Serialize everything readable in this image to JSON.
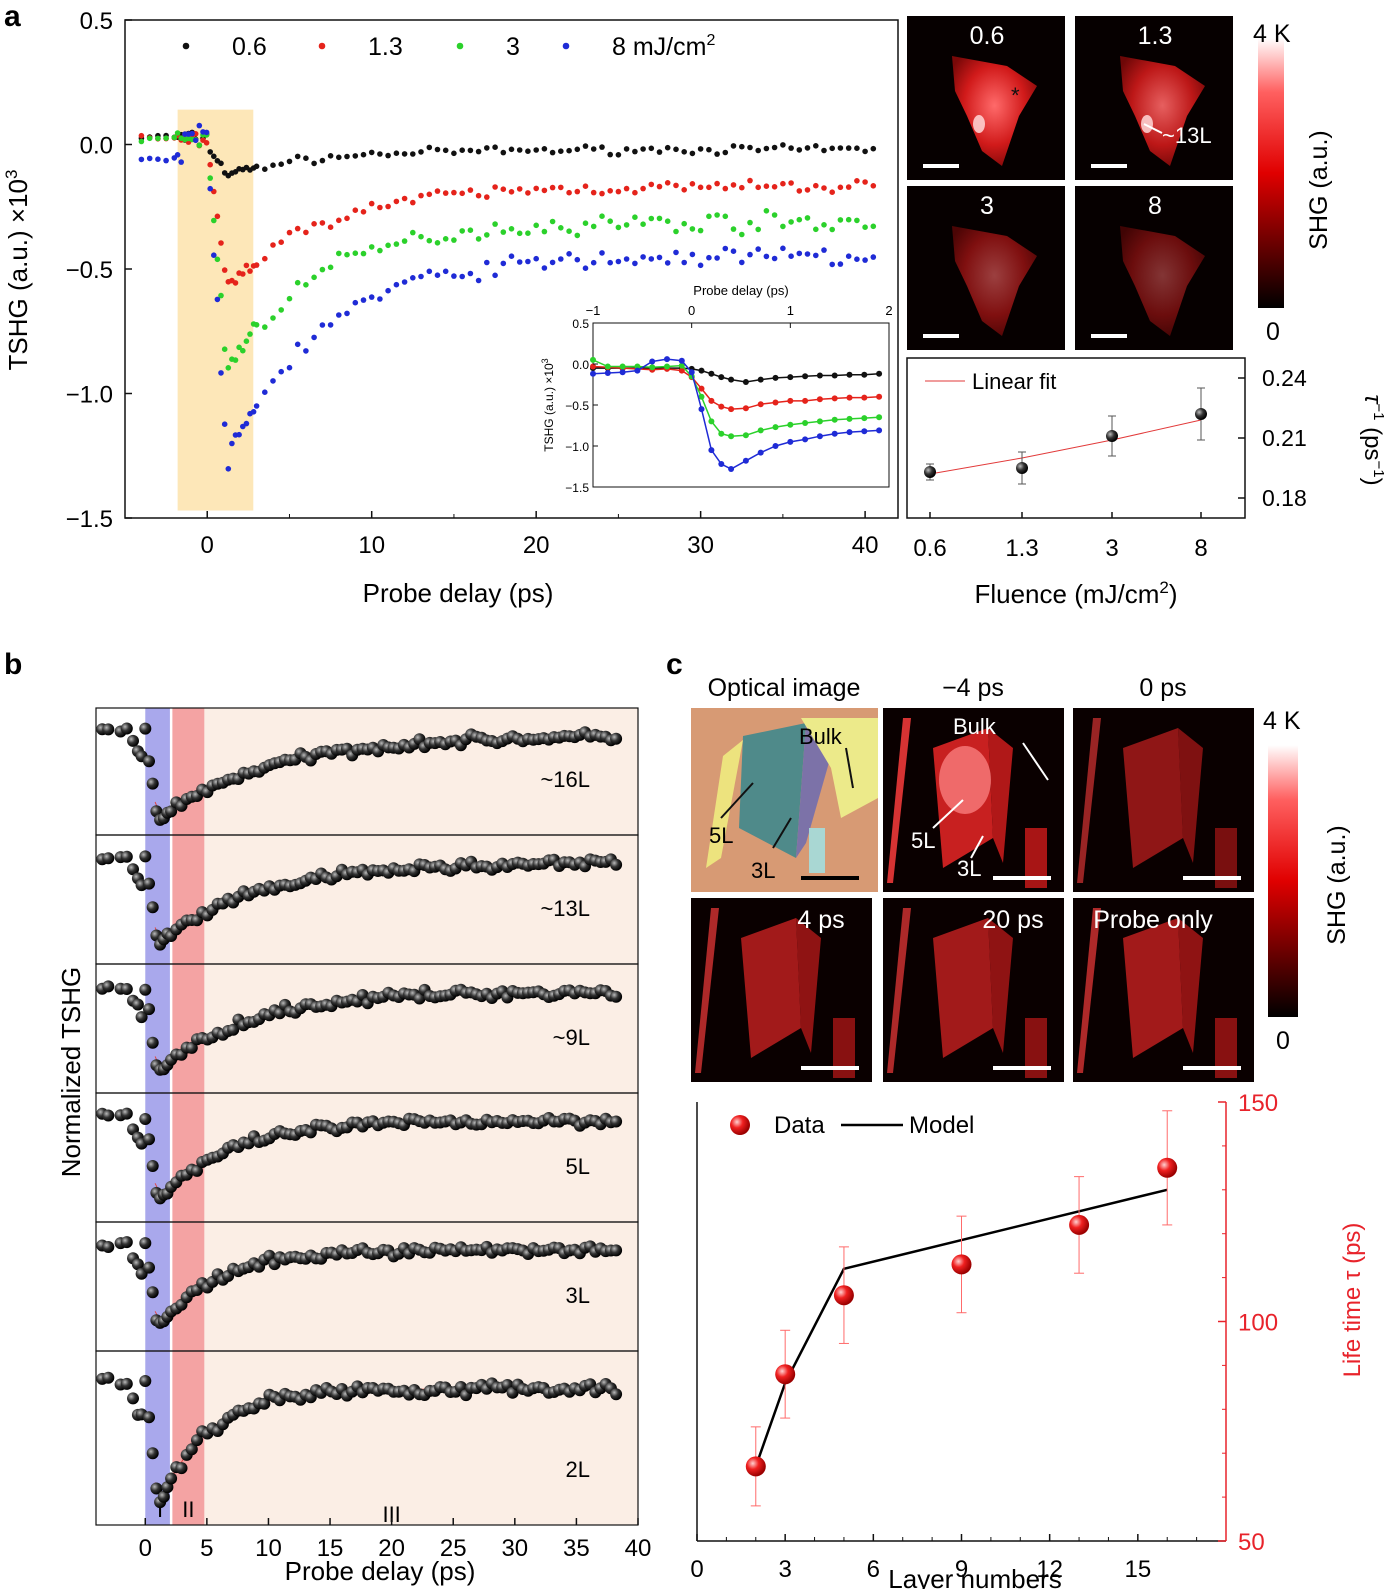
{
  "panel_labels": {
    "a": "a",
    "b": "b",
    "c": "c"
  },
  "colors": {
    "s06": "#111111",
    "s13": "#e5231b",
    "s3": "#2bd12b",
    "s8": "#1f2bd6",
    "highlight": "#fde7b8",
    "fit": "#e23a3a",
    "red": "#e8232b",
    "regionI": "#a9a8ec",
    "regionII": "#f4a3a3",
    "regionIII": "#fbeee5"
  },
  "chart_data": [
    {
      "id": "a-main",
      "type": "scatter",
      "xlabel": "Probe delay (ps)",
      "ylabel": "TSHG (a.u.) ×10",
      "ylabel_sup": "3",
      "xlim": [
        -5,
        42
      ],
      "ylim": [
        -1.5,
        0.5
      ],
      "xticks": [
        0,
        10,
        20,
        30,
        40
      ],
      "yticks": [
        0.5,
        0.0,
        -0.5,
        -1.0,
        -1.5
      ],
      "yticklabels": [
        "0.5",
        "0.0",
        "−0.5",
        "−1.0",
        "−1.5"
      ],
      "highlight_range": [
        -1.8,
        2.8
      ],
      "legend": [
        {
          "label": "0.6",
          "key": "s06"
        },
        {
          "label": "1.3",
          "key": "s13"
        },
        {
          "label": "3",
          "key": "s3"
        },
        {
          "label": "8 mJ/cm",
          "key": "s8",
          "sup": "2"
        }
      ],
      "series": [
        {
          "name": "0.6 mJ/cm2",
          "key": "s06",
          "dip": -0.12,
          "final": -0.02,
          "noise": 0.012
        },
        {
          "name": "1.3 mJ/cm2",
          "key": "s13",
          "dip": -0.58,
          "final": -0.17,
          "noise": 0.02
        },
        {
          "name": "3 mJ/cm2",
          "key": "s3",
          "dip": -0.9,
          "final": -0.31,
          "noise": 0.03
        },
        {
          "name": "8 mJ/cm2",
          "key": "s8",
          "dip": -1.28,
          "final": -0.45,
          "noise": 0.03
        }
      ]
    },
    {
      "id": "a-inset",
      "type": "line",
      "xlabel": "Probe delay (ps)",
      "ylabel": "TSHG (a.u.) ×10",
      "ylabel_sup": "3",
      "xlim": [
        -1,
        2
      ],
      "ylim": [
        -1.5,
        0.5
      ],
      "xticks": [
        -1,
        0,
        1,
        2
      ],
      "xticklabels": [
        "−1",
        "0",
        "1",
        "2"
      ],
      "yticks": [
        0.5,
        0.0,
        -0.5,
        -1.0,
        -1.5
      ],
      "yticklabels": [
        "0.5",
        "0.0",
        "−0.5",
        "−1.0",
        "−1.5"
      ],
      "x": [
        -1.0,
        -0.85,
        -0.7,
        -0.55,
        -0.4,
        -0.25,
        -0.1,
        0.0,
        0.1,
        0.2,
        0.3,
        0.4,
        0.55,
        0.7,
        0.85,
        1.0,
        1.15,
        1.3,
        1.45,
        1.6,
        1.75,
        1.9
      ],
      "series": [
        {
          "name": "0.6",
          "key": "s06",
          "values": [
            -0.05,
            -0.05,
            -0.05,
            -0.05,
            -0.05,
            -0.05,
            -0.05,
            -0.06,
            -0.08,
            -0.12,
            -0.16,
            -0.19,
            -0.22,
            -0.19,
            -0.17,
            -0.16,
            -0.15,
            -0.14,
            -0.14,
            -0.13,
            -0.13,
            -0.12
          ]
        },
        {
          "name": "1.3",
          "key": "s13",
          "values": [
            -0.03,
            -0.04,
            -0.05,
            -0.06,
            -0.07,
            -0.06,
            -0.08,
            -0.16,
            -0.3,
            -0.45,
            -0.52,
            -0.55,
            -0.54,
            -0.49,
            -0.47,
            -0.45,
            -0.45,
            -0.43,
            -0.42,
            -0.41,
            -0.41,
            -0.4
          ]
        },
        {
          "name": "3",
          "key": "s3",
          "values": [
            0.05,
            -0.03,
            -0.03,
            -0.03,
            -0.04,
            -0.03,
            -0.02,
            -0.15,
            -0.4,
            -0.7,
            -0.85,
            -0.88,
            -0.87,
            -0.81,
            -0.77,
            -0.74,
            -0.72,
            -0.7,
            -0.68,
            -0.67,
            -0.66,
            -0.65
          ]
        },
        {
          "name": "8",
          "key": "s8",
          "values": [
            -0.12,
            -0.11,
            -0.1,
            -0.08,
            0.03,
            0.06,
            0.04,
            -0.1,
            -0.55,
            -1.05,
            -1.22,
            -1.28,
            -1.18,
            -1.08,
            -1.0,
            -0.95,
            -0.92,
            -0.88,
            -0.85,
            -0.83,
            -0.82,
            -0.81
          ]
        }
      ]
    },
    {
      "id": "a-rate",
      "type": "scatter",
      "xlabel": "Fluence (mJ/cm",
      "xlabel_sup": "2",
      "xlabel_end": ")",
      "ylabel": "τ",
      "ylabel_sup": "−1",
      "ylabel_end": " (ps",
      "ylabel_sup2": "−1",
      "ylabel_end2": ")",
      "categories": [
        "0.6",
        "1.3",
        "3",
        "8"
      ],
      "values": [
        0.193,
        0.195,
        0.211,
        0.222
      ],
      "errors": [
        0.004,
        0.008,
        0.01,
        0.013
      ],
      "fit": [
        0.192,
        0.2,
        0.209,
        0.219
      ],
      "ylim": [
        0.17,
        0.25
      ],
      "yticks": [
        0.18,
        0.21,
        0.24
      ],
      "yticklabels": [
        "0.18",
        "0.21",
        "0.24"
      ],
      "legend": "Linear fit"
    },
    {
      "id": "b",
      "type": "scatter",
      "xlabel": "Probe delay (ps)",
      "ylabel": "Normalized TSHG",
      "xlim": [
        -4,
        40
      ],
      "xticks": [
        0,
        5,
        10,
        15,
        20,
        25,
        30,
        35,
        40
      ],
      "regions": [
        {
          "label": "I",
          "from": 0,
          "to": 2
        },
        {
          "label": "II",
          "from": 2.2,
          "to": 4.8
        },
        {
          "label": "III",
          "from": 4.8,
          "to": 40
        }
      ],
      "series": [
        {
          "name": "~16L",
          "dip": 0.12,
          "rec": 0.38,
          "tau": 9
        },
        {
          "name": "~13L",
          "dip": 0.15,
          "rec": 0.45,
          "tau": 8
        },
        {
          "name": "~9L",
          "dip": 0.15,
          "rec": 0.4,
          "tau": 7
        },
        {
          "name": "5L",
          "dip": 0.17,
          "rec": 0.38,
          "tau": 6
        },
        {
          "name": "3L",
          "dip": 0.18,
          "rec": 0.44,
          "tau": 5
        },
        {
          "name": "2L",
          "dip": 0.1,
          "rec": 0.45,
          "tau": 4
        }
      ]
    },
    {
      "id": "c-lifetime",
      "type": "scatter",
      "xlabel": "Layer numbers",
      "ylabel": "Life time τ (ps)",
      "xlim": [
        0,
        18
      ],
      "xticks": [
        0,
        3,
        6,
        9,
        12,
        15
      ],
      "ylim": [
        50,
        150
      ],
      "yticks": [
        50,
        100,
        150
      ],
      "x": [
        2,
        3,
        5,
        9,
        13,
        16
      ],
      "values": [
        67,
        88,
        106,
        113,
        122,
        135
      ],
      "errors": [
        9,
        10,
        11,
        11,
        11,
        13
      ],
      "model": [
        [
          2,
          67
        ],
        [
          3,
          86
        ],
        [
          5,
          112
        ],
        [
          16,
          130
        ]
      ],
      "legend": [
        "Data",
        "Model"
      ]
    }
  ],
  "a_images": {
    "tiles": [
      {
        "label": "0.6",
        "intensity": 1.0
      },
      {
        "label": "1.3",
        "intensity": 0.9
      },
      {
        "label": "3",
        "intensity": 0.6
      },
      {
        "label": "8",
        "intensity": 0.5
      }
    ],
    "star": "*",
    "annotation": "~13L",
    "colorbar": {
      "max": "4 K",
      "min": "0",
      "label": "SHG (a.u.)"
    }
  },
  "c_images": {
    "labels_top": [
      "Optical image",
      "−4 ps",
      "0 ps"
    ],
    "labels_bottom": [
      "4 ps",
      "20 ps",
      "Probe only"
    ],
    "optical_annotations": [
      "Bulk",
      "5L",
      "3L"
    ],
    "shg_annotations": [
      "Bulk",
      "5L",
      "3L"
    ],
    "colorbar": {
      "max": "4 K",
      "min": "0",
      "label": "SHG (a.u.)"
    }
  }
}
